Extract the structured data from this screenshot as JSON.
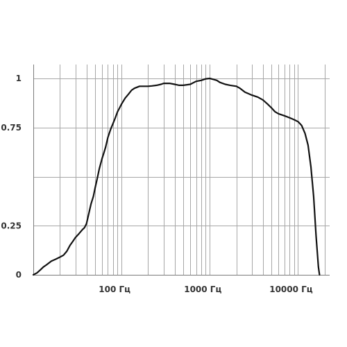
{
  "chart_data": {
    "type": "line",
    "title": "",
    "xlabel": "",
    "ylabel": "",
    "x_scale": "log",
    "xlim": [
      10,
      22000
    ],
    "ylim": [
      0,
      1
    ],
    "grid": true,
    "y_ticks": [
      {
        "value": 0,
        "label": "0"
      },
      {
        "value": 0.25,
        "label": "0.25"
      },
      {
        "value": 0.75,
        "label": "0.75"
      },
      {
        "value": 1,
        "label": "1"
      }
    ],
    "y_gridlines": [
      0.25,
      0.5,
      0.75,
      1
    ],
    "x_ticks": [
      {
        "value": 100,
        "label": "100 Гц"
      },
      {
        "value": 1000,
        "label": "1000 Гц"
      },
      {
        "value": 10000,
        "label": "10000 Гц"
      }
    ],
    "series": [
      {
        "x": [
          10,
          11,
          12,
          13,
          14,
          15,
          16,
          18,
          20,
          22,
          24,
          26,
          28,
          30,
          33,
          36,
          38,
          40,
          42,
          45,
          48,
          50,
          53,
          56,
          60,
          63,
          66,
          70,
          75,
          80,
          85,
          90,
          95,
          100,
          110,
          120,
          130,
          140,
          150,
          160,
          170,
          180,
          200,
          220,
          250,
          280,
          300,
          350,
          400,
          450,
          500,
          600,
          700,
          800,
          900,
          1000,
          1100,
          1200,
          1300,
          1500,
          1700,
          2000,
          2200,
          2500,
          3000,
          3500,
          4000,
          4500,
          5000,
          5500,
          6000,
          7000,
          8000,
          9000,
          10000,
          11000,
          12000,
          13000,
          14000,
          15000,
          16000,
          17000,
          17500
        ],
        "values": [
          0.0,
          0.01,
          0.025,
          0.04,
          0.05,
          0.06,
          0.07,
          0.08,
          0.09,
          0.1,
          0.12,
          0.15,
          0.17,
          0.19,
          0.21,
          0.23,
          0.24,
          0.26,
          0.3,
          0.36,
          0.4,
          0.44,
          0.49,
          0.54,
          0.59,
          0.62,
          0.65,
          0.7,
          0.74,
          0.77,
          0.8,
          0.83,
          0.85,
          0.87,
          0.9,
          0.92,
          0.94,
          0.95,
          0.955,
          0.96,
          0.96,
          0.96,
          0.96,
          0.962,
          0.965,
          0.97,
          0.975,
          0.975,
          0.97,
          0.965,
          0.965,
          0.97,
          0.985,
          0.99,
          0.998,
          1.0,
          0.995,
          0.99,
          0.98,
          0.97,
          0.965,
          0.96,
          0.95,
          0.93,
          0.915,
          0.905,
          0.89,
          0.87,
          0.85,
          0.83,
          0.82,
          0.81,
          0.8,
          0.79,
          0.78,
          0.76,
          0.72,
          0.66,
          0.55,
          0.4,
          0.2,
          0.04,
          0.0
        ]
      }
    ]
  }
}
